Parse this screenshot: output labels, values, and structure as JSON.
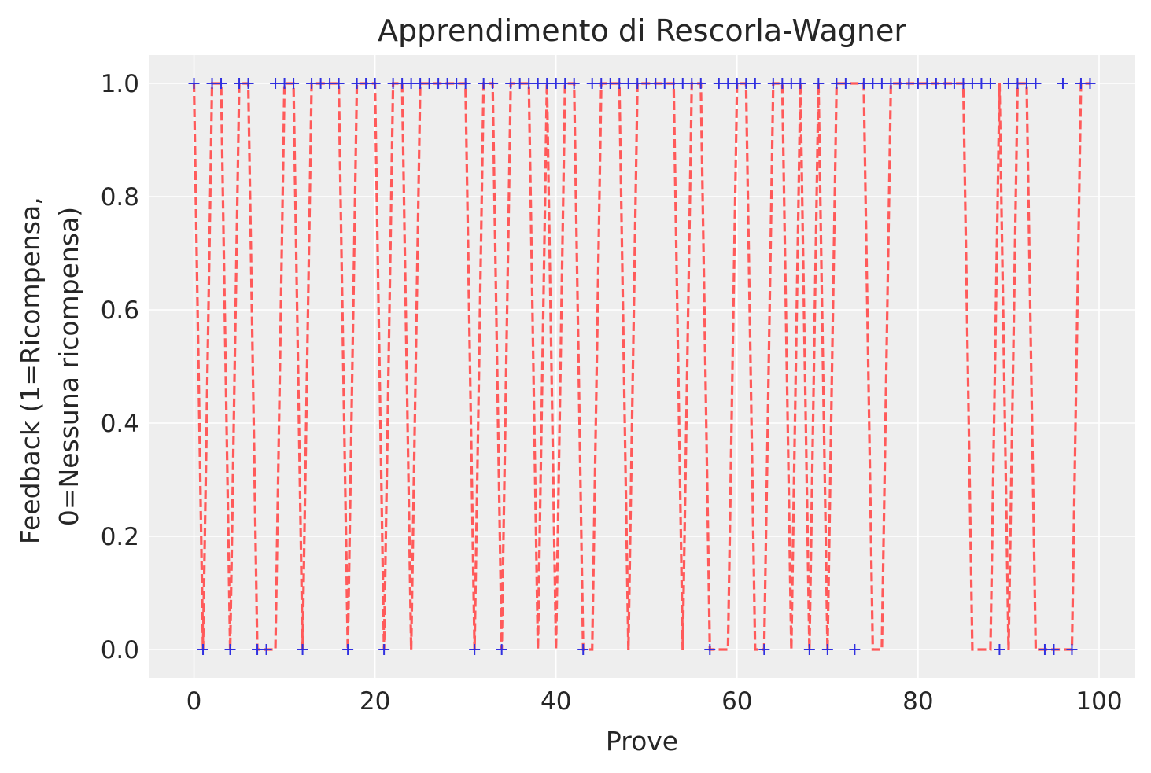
{
  "chart_data": {
    "type": "line",
    "title": "Apprendimento di Rescorla-Wagner",
    "xlabel": "Prove",
    "ylabel_lines": [
      "Feedback (1=Ricompensa,",
      "0=Nessuna ricompensa)"
    ],
    "xlim": [
      -5,
      104
    ],
    "ylim": [
      -0.05,
      1.05
    ],
    "xticks": [
      0,
      20,
      40,
      60,
      80,
      100
    ],
    "yticks": [
      0.0,
      0.2,
      0.4,
      0.6,
      0.8,
      1.0
    ],
    "xtick_labels": [
      "0",
      "20",
      "40",
      "60",
      "80",
      "100"
    ],
    "ytick_labels": [
      "0.0",
      "0.2",
      "0.4",
      "0.6",
      "0.8",
      "1.0"
    ],
    "grid": true,
    "colors": {
      "background": "#eeeeee",
      "grid": "#ffffff",
      "line": "#ff5a5a",
      "markers": "#3030e0"
    },
    "series": [
      {
        "kind": "dashed-line",
        "x": [
          0,
          1,
          2,
          3,
          4,
          5,
          6,
          7,
          8,
          9,
          10,
          11,
          12,
          13,
          14,
          15,
          16,
          17,
          18,
          19,
          20,
          21,
          22,
          23,
          24,
          25,
          26,
          27,
          28,
          29,
          30,
          31,
          32,
          33,
          34,
          35,
          36,
          37,
          38,
          39,
          40,
          41,
          42,
          43,
          44,
          45,
          46,
          47,
          48,
          49,
          50,
          51,
          52,
          53,
          54,
          55,
          56,
          57,
          58,
          59,
          60,
          61,
          62,
          63,
          64,
          65,
          66,
          67,
          68,
          69,
          70,
          71,
          72,
          73,
          74,
          75,
          76,
          77,
          78,
          79,
          80,
          81,
          82,
          83,
          84,
          85,
          86,
          87,
          88,
          89,
          90,
          91,
          92,
          93,
          94,
          95,
          96,
          97,
          98,
          99
        ],
        "y": [
          1,
          0,
          1,
          1,
          0,
          1,
          1,
          0,
          0,
          0,
          1,
          1,
          0,
          1,
          1,
          1,
          1,
          0,
          1,
          1,
          1,
          0,
          1,
          1,
          0,
          1,
          1,
          1,
          1,
          1,
          1,
          0,
          1,
          1,
          0,
          1,
          1,
          1,
          0,
          1,
          0,
          1,
          1,
          0,
          0,
          1,
          1,
          1,
          0,
          1,
          1,
          1,
          1,
          1,
          0,
          1,
          1,
          0,
          0,
          0,
          1,
          1,
          0,
          0,
          1,
          1,
          0,
          1,
          0,
          1,
          0,
          1,
          1,
          1,
          1,
          0,
          0,
          1,
          1,
          1,
          1,
          1,
          1,
          1,
          1,
          1,
          0,
          0,
          0,
          1,
          0,
          1,
          1,
          0,
          0,
          0,
          0,
          0,
          1,
          1
        ]
      },
      {
        "kind": "plus-markers",
        "x": [
          0,
          1,
          2,
          3,
          4,
          5,
          6,
          7,
          8,
          9,
          10,
          11,
          12,
          13,
          14,
          15,
          16,
          17,
          18,
          19,
          20,
          21,
          22,
          23,
          24,
          25,
          26,
          27,
          28,
          29,
          30,
          31,
          32,
          33,
          34,
          35,
          36,
          37,
          38,
          39,
          40,
          41,
          42,
          43,
          44,
          45,
          46,
          47,
          48,
          49,
          50,
          51,
          52,
          53,
          54,
          55,
          56,
          57,
          58,
          59,
          60,
          61,
          62,
          63,
          64,
          65,
          66,
          67,
          68,
          69,
          70,
          71,
          72,
          73,
          74,
          75,
          76,
          77,
          78,
          79,
          80,
          81,
          82,
          83,
          84,
          85,
          86,
          87,
          88,
          89,
          90,
          91,
          92,
          93,
          94,
          95,
          96,
          97,
          98,
          99
        ],
        "y": [
          1,
          0,
          1,
          1,
          0,
          1,
          1,
          0,
          0,
          1,
          1,
          1,
          0,
          1,
          1,
          1,
          1,
          0,
          1,
          1,
          1,
          0,
          1,
          1,
          1,
          1,
          1,
          1,
          1,
          1,
          1,
          0,
          1,
          1,
          0,
          1,
          1,
          1,
          1,
          1,
          1,
          1,
          1,
          0,
          1,
          1,
          1,
          1,
          1,
          1,
          1,
          1,
          1,
          1,
          1,
          1,
          1,
          0,
          1,
          1,
          1,
          1,
          1,
          0,
          1,
          1,
          1,
          1,
          0,
          1,
          0,
          1,
          1,
          0,
          1,
          1,
          1,
          1,
          1,
          1,
          1,
          1,
          1,
          1,
          1,
          1,
          1,
          1,
          1,
          0,
          1,
          1,
          1,
          1,
          0,
          0,
          1,
          0,
          1,
          1
        ]
      }
    ]
  }
}
